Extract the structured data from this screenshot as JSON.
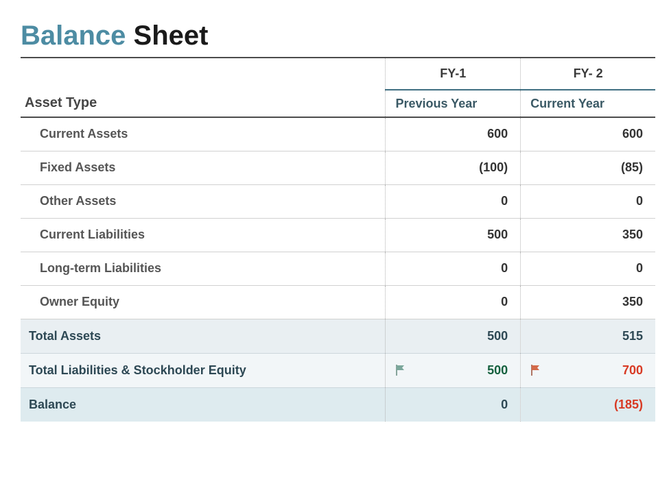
{
  "title": {
    "word1": "Balance",
    "word2": "Sheet"
  },
  "colors": {
    "title_accent": "#4d8ca3",
    "title_dark": "#1a1a1a",
    "neg": "#d83a24",
    "pos": "#15603e",
    "row_blue1": "#e9eff2",
    "row_blue2": "#f2f6f8",
    "row_blue3": "#deebef",
    "flag_green": "#7ba79b",
    "flag_red": "#d36a4a"
  },
  "headers": {
    "asset_type": "Asset Type",
    "fy1": "FY-1",
    "fy2": "FY- 2",
    "fy1_sub": "Previous Year",
    "fy2_sub": "Current Year"
  },
  "rows": [
    {
      "label": "Current Assets",
      "fy1": "600",
      "fy2": "600"
    },
    {
      "label": "Fixed Assets",
      "fy1": "(100)",
      "fy1_neg": true,
      "fy2": "(85)",
      "fy2_neg": true
    },
    {
      "label": "Other Assets",
      "fy1": "0",
      "fy2": "0"
    },
    {
      "label": "Current Liabilities",
      "fy1": "500",
      "fy2": "350"
    },
    {
      "label": "Long-term Liabilities",
      "fy1": "0",
      "fy2": "0"
    },
    {
      "label": "Owner Equity",
      "fy1": "0",
      "fy2": "350"
    }
  ],
  "summary": {
    "total_assets": {
      "label": "Total Assets",
      "fy1": "500",
      "fy2": "515"
    },
    "tlse": {
      "label": "Total Liabilities & Stockholder Equity",
      "fy1": "500",
      "fy2": "700"
    },
    "balance": {
      "label": "Balance",
      "fy1": "0",
      "fy2": "(185)",
      "fy2_neg": true
    }
  }
}
